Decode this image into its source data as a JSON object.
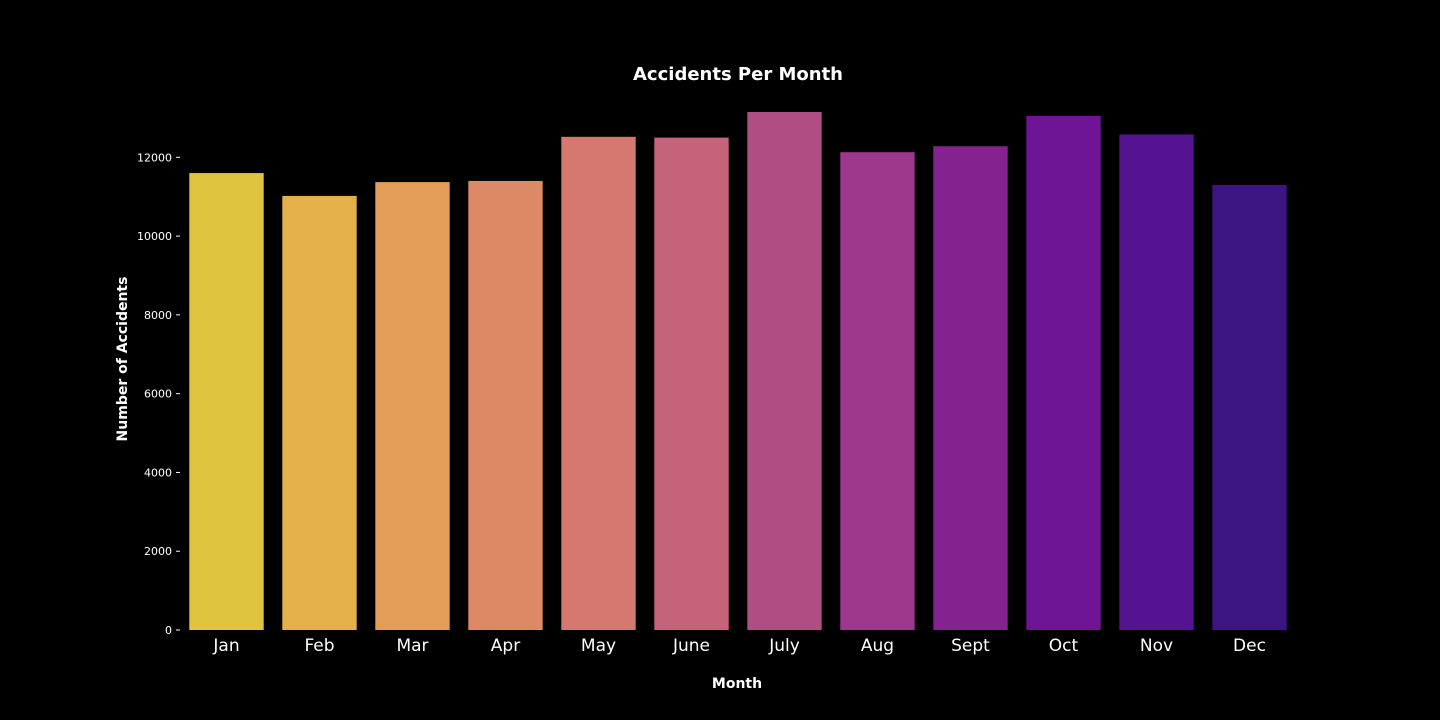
{
  "chart_data": {
    "type": "bar",
    "title": "Accidents Per Month",
    "xlabel": "Month",
    "ylabel": "Number of Accidents",
    "categories": [
      "Jan",
      "Feb",
      "Mar",
      "Apr",
      "May",
      "June",
      "July",
      "Aug",
      "Sept",
      "Oct",
      "Nov",
      "Dec"
    ],
    "values": [
      11600,
      11020,
      11370,
      11400,
      12520,
      12500,
      13150,
      12130,
      12280,
      13050,
      12580,
      11300
    ],
    "colors": [
      "#dfc53f",
      "#e4b04a",
      "#e39d59",
      "#dd8966",
      "#d47870",
      "#c5637b",
      "#b04d83",
      "#9c378b",
      "#84238f",
      "#6e1596",
      "#541391",
      "#3c1583"
    ],
    "ylim": [
      0,
      13150
    ],
    "yticks": [
      0,
      2000,
      4000,
      6000,
      8000,
      10000,
      12000
    ],
    "ytick_labels": [
      "0",
      "2000",
      "4000",
      "6000",
      "8000",
      "10000",
      "12000"
    ],
    "grid": false,
    "legend": "none"
  }
}
